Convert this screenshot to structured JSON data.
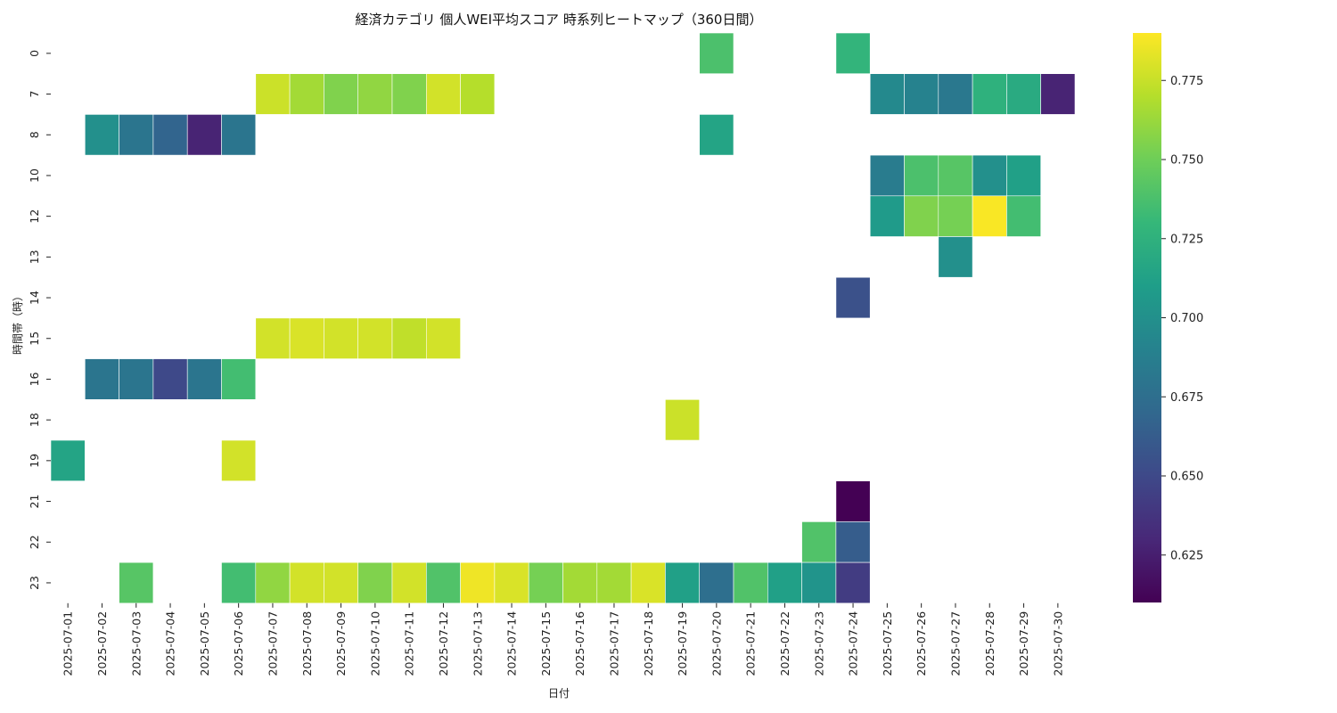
{
  "chart_data": {
    "type": "heatmap",
    "title": "経済カテゴリ 個人WEI平均スコア 時系列ヒートマップ（360日間）",
    "xlabel": "日付",
    "ylabel": "時間帯（時）",
    "colormap": "viridis",
    "vmin": 0.61,
    "vmax": 0.79,
    "colorbar_ticks": [
      "0.625",
      "0.650",
      "0.675",
      "0.700",
      "0.725",
      "0.750",
      "0.775"
    ],
    "x": [
      "2025-07-01",
      "2025-07-02",
      "2025-07-03",
      "2025-07-04",
      "2025-07-05",
      "2025-07-06",
      "2025-07-07",
      "2025-07-08",
      "2025-07-09",
      "2025-07-10",
      "2025-07-11",
      "2025-07-12",
      "2025-07-13",
      "2025-07-14",
      "2025-07-15",
      "2025-07-16",
      "2025-07-17",
      "2025-07-18",
      "2025-07-19",
      "2025-07-20",
      "2025-07-21",
      "2025-07-22",
      "2025-07-23",
      "2025-07-24",
      "2025-07-25",
      "2025-07-26",
      "2025-07-27",
      "2025-07-28",
      "2025-07-29",
      "2025-07-30"
    ],
    "y": [
      "0",
      "7",
      "8",
      "10",
      "12",
      "13",
      "14",
      "15",
      "16",
      "18",
      "19",
      "21",
      "22",
      "23"
    ],
    "cells": [
      [
        "2025-07-20",
        "0",
        0.738
      ],
      [
        "2025-07-24",
        "0",
        0.728
      ],
      [
        "2025-07-07",
        "7",
        0.776
      ],
      [
        "2025-07-08",
        "7",
        0.765
      ],
      [
        "2025-07-09",
        "7",
        0.755
      ],
      [
        "2025-07-10",
        "7",
        0.76
      ],
      [
        "2025-07-11",
        "7",
        0.755
      ],
      [
        "2025-07-12",
        "7",
        0.778
      ],
      [
        "2025-07-13",
        "7",
        0.77
      ],
      [
        "2025-07-25",
        "7",
        0.695
      ],
      [
        "2025-07-26",
        "7",
        0.69
      ],
      [
        "2025-07-27",
        "7",
        0.682
      ],
      [
        "2025-07-28",
        "7",
        0.725
      ],
      [
        "2025-07-29",
        "7",
        0.72
      ],
      [
        "2025-07-30",
        "7",
        0.628
      ],
      [
        "2025-07-02",
        "8",
        0.7
      ],
      [
        "2025-07-03",
        "8",
        0.68
      ],
      [
        "2025-07-04",
        "8",
        0.668
      ],
      [
        "2025-07-05",
        "8",
        0.628
      ],
      [
        "2025-07-06",
        "8",
        0.68
      ],
      [
        "2025-07-20",
        "8",
        0.715
      ],
      [
        "2025-07-25",
        "10",
        0.685
      ],
      [
        "2025-07-26",
        "10",
        0.738
      ],
      [
        "2025-07-27",
        "10",
        0.742
      ],
      [
        "2025-07-28",
        "10",
        0.7
      ],
      [
        "2025-07-29",
        "10",
        0.712
      ],
      [
        "2025-07-25",
        "12",
        0.708
      ],
      [
        "2025-07-26",
        "12",
        0.755
      ],
      [
        "2025-07-27",
        "12",
        0.752
      ],
      [
        "2025-07-28",
        "12",
        0.789
      ],
      [
        "2025-07-29",
        "12",
        0.735
      ],
      [
        "2025-07-27",
        "13",
        0.7
      ],
      [
        "2025-07-24",
        "14",
        0.655
      ],
      [
        "2025-07-07",
        "15",
        0.778
      ],
      [
        "2025-07-08",
        "15",
        0.78
      ],
      [
        "2025-07-09",
        "15",
        0.778
      ],
      [
        "2025-07-10",
        "15",
        0.778
      ],
      [
        "2025-07-11",
        "15",
        0.773
      ],
      [
        "2025-07-12",
        "15",
        0.778
      ],
      [
        "2025-07-02",
        "16",
        0.68
      ],
      [
        "2025-07-03",
        "16",
        0.68
      ],
      [
        "2025-07-04",
        "16",
        0.65
      ],
      [
        "2025-07-05",
        "16",
        0.68
      ],
      [
        "2025-07-06",
        "16",
        0.735
      ],
      [
        "2025-07-19",
        "18",
        0.776
      ],
      [
        "2025-07-01",
        "19",
        0.715
      ],
      [
        "2025-07-06",
        "19",
        0.778
      ],
      [
        "2025-07-24",
        "21",
        0.61
      ],
      [
        "2025-07-23",
        "22",
        0.74
      ],
      [
        "2025-07-24",
        "22",
        0.663
      ],
      [
        "2025-07-03",
        "23",
        0.742
      ],
      [
        "2025-07-06",
        "23",
        0.735
      ],
      [
        "2025-07-07",
        "23",
        0.76
      ],
      [
        "2025-07-08",
        "23",
        0.778
      ],
      [
        "2025-07-09",
        "23",
        0.778
      ],
      [
        "2025-07-10",
        "23",
        0.755
      ],
      [
        "2025-07-11",
        "23",
        0.778
      ],
      [
        "2025-07-12",
        "23",
        0.74
      ],
      [
        "2025-07-13",
        "23",
        0.786
      ],
      [
        "2025-07-14",
        "23",
        0.78
      ],
      [
        "2025-07-15",
        "23",
        0.752
      ],
      [
        "2025-07-16",
        "23",
        0.765
      ],
      [
        "2025-07-17",
        "23",
        0.765
      ],
      [
        "2025-07-18",
        "23",
        0.78
      ],
      [
        "2025-07-19",
        "23",
        0.712
      ],
      [
        "2025-07-20",
        "23",
        0.675
      ],
      [
        "2025-07-21",
        "23",
        0.74
      ],
      [
        "2025-07-22",
        "23",
        0.712
      ],
      [
        "2025-07-23",
        "23",
        0.703
      ],
      [
        "2025-07-24",
        "23",
        0.642
      ]
    ]
  }
}
